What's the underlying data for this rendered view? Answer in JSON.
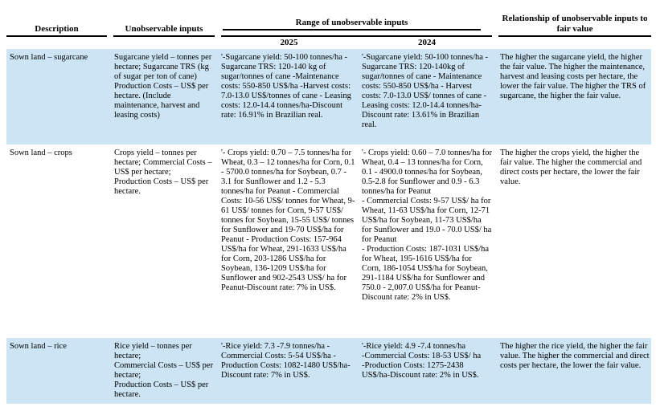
{
  "colors": {
    "row_highlight": "#cce4f3",
    "rule": "#000000",
    "text": "#000000"
  },
  "table": {
    "headers": {
      "description": "Description",
      "unobservable_inputs": "Unobservable inputs",
      "range": "Range of unobservable inputs",
      "year_2025": "2025",
      "year_2024": "2024",
      "relationship": "Relationship of unobservable inputs to fair value"
    },
    "rows": [
      {
        "description": "Sown land – sugarcane",
        "unobservable_inputs": "Sugarcane yield – tonnes per hectare; Sugarcane TRS (kg of sugar per ton of cane) Production Costs – US$ per hectare. (Include maintenance, harvest and leasing costs)",
        "range_2025": "'-Sugarcane yield: 50-100 tonnes/ha -Sugarcane TRS: 120-140 kg of sugar/tonnes of cane -Maintenance costs: 550-850 US$/ha -Harvest costs: 7.0-13.0 US$/tonnes of cane - Leasing costs: 12.0-14.4 tonnes/ha-Discount rate: 16.91% in Brazilian real.",
        "range_2024": "'-Sugarcane yield: 50-100 tonnes/ha - Sugarcane TRS: 120-140kg of sugar/tonnes of cane - Maintenance costs: 550-850 US$/ha - Harvest costs: 7.0-13.0 US$/ tonnes of cane - Leasing costs: 12.0-14.4 tonnes/ha-Discount rate: 13.61% in Brazilian real.",
        "relationship": "The higher the sugarcane yield, the higher the fair value. The higher the maintenance, harvest and leasing costs per hectare, the lower the fair value. The higher the TRS of sugarcane, the higher the fair value."
      },
      {
        "description": "Sown land – crops",
        "unobservable_inputs": "Crops yield – tonnes per hectare; Commercial Costs – US$ per hectare;\nProduction Costs – US$ per hectare.",
        "range_2025": "'- Crops yield: 0.70 – 7.5 tonnes/ha for Wheat, 0.3 – 12 tonnes/ha for Corn, 0.1 - 5700.0 tonnes/ha for Soybean, 0.7 - 3.1 for Sunflower and 1.2 - 5.3 tonnes/ha for Peanut - Commercial Costs: 10-56 US$/ tonnes for Wheat, 9-61 US$/ tonnes for Corn, 9-57 US$/ tonnes for Soybean, 15-55 US$/ tonnes for Sunflower and 19-70 US$/ha for Peanut - Production Costs: 157-964 US$/ha for Wheat, 291-1633 US$/ha for Corn, 203-1286 US$/ha for Soybean, 136-1209 US$/ha for Sunflower and 902-2543 US$/ ha for Peanut-Discount rate: 7% in US$.",
        "range_2024": "'- Crops yield: 0.60 – 7.0 tonnes/ha for Wheat, 0.4 – 13 tonnes/ha for Corn, 0.1 - 4900.0 tonnes/ha for Soybean, 0.5-2.8 for Sunflower and 0.9 - 6.3 tonnes/ha for Peanut\n- Commercial Costs: 9-57 US$/ ha for Wheat, 11-63 US$/ha for Corn, 12-71  US$/ha for Soybean, 11-73 US$/ha for Sunflower and 19.0 - 70.0 US$/ ha for Peanut\n- Production Costs: 187-1031 US$/ha for Wheat, 195-1616 US$/ha for Corn, 186-1054 US$/ha for Soybean, 291-1184 US$/ha for Sunflower and 750.0 - 2,007.0 US$/ha for Peanut-Discount rate: 2% in US$.",
        "relationship": "The higher the crops yield, the higher the fair value. The higher the commercial and direct costs per hectare, the lower the fair value."
      },
      {
        "description": "Sown land – rice",
        "unobservable_inputs": "Rice yield – tonnes per hectare;\nCommercial Costs – US$ per hectare;\nProduction Costs – US$ per hectare.",
        "range_2025": "'-Rice yield: 7.3 -7.9 tonnes/ha - Commercial Costs: 5-54 US$/ha -Production Costs: 1082-1480 US$/ha-Discount rate: 7% in US$.",
        "range_2024": "'-Rice yield: 4.9 -7.4 tonnes/ha\n-Commercial Costs: 18-53 US$/ ha\n-Production Costs: 1275-2438 US$/ha-Discount rate: 2% in US$.",
        "relationship": "The higher the rice yield, the higher the fair value. The higher the commercial and direct costs per hectare, the lower the fair value."
      }
    ]
  }
}
